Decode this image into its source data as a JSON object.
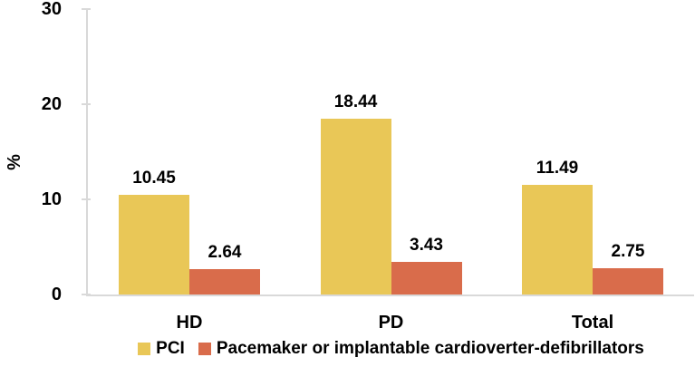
{
  "chart_data": {
    "type": "bar",
    "title": "",
    "xlabel": "",
    "ylabel": "%",
    "ylim": [
      0,
      30
    ],
    "yticks": [
      0,
      10,
      20,
      30
    ],
    "categories": [
      "HD",
      "PD",
      "Total"
    ],
    "series": [
      {
        "name": "PCI",
        "color": "#E9C757",
        "values": [
          10.45,
          18.44,
          11.49
        ]
      },
      {
        "name": "Pacemaker or implantable cardioverter-defibrillators",
        "color": "#D96C4B",
        "values": [
          2.64,
          3.43,
          2.75
        ]
      }
    ],
    "data_label_decimals": 2,
    "legend_position": "bottom",
    "grid": "off",
    "axis_color": "#D9D9D9",
    "text_color": "#000000"
  }
}
